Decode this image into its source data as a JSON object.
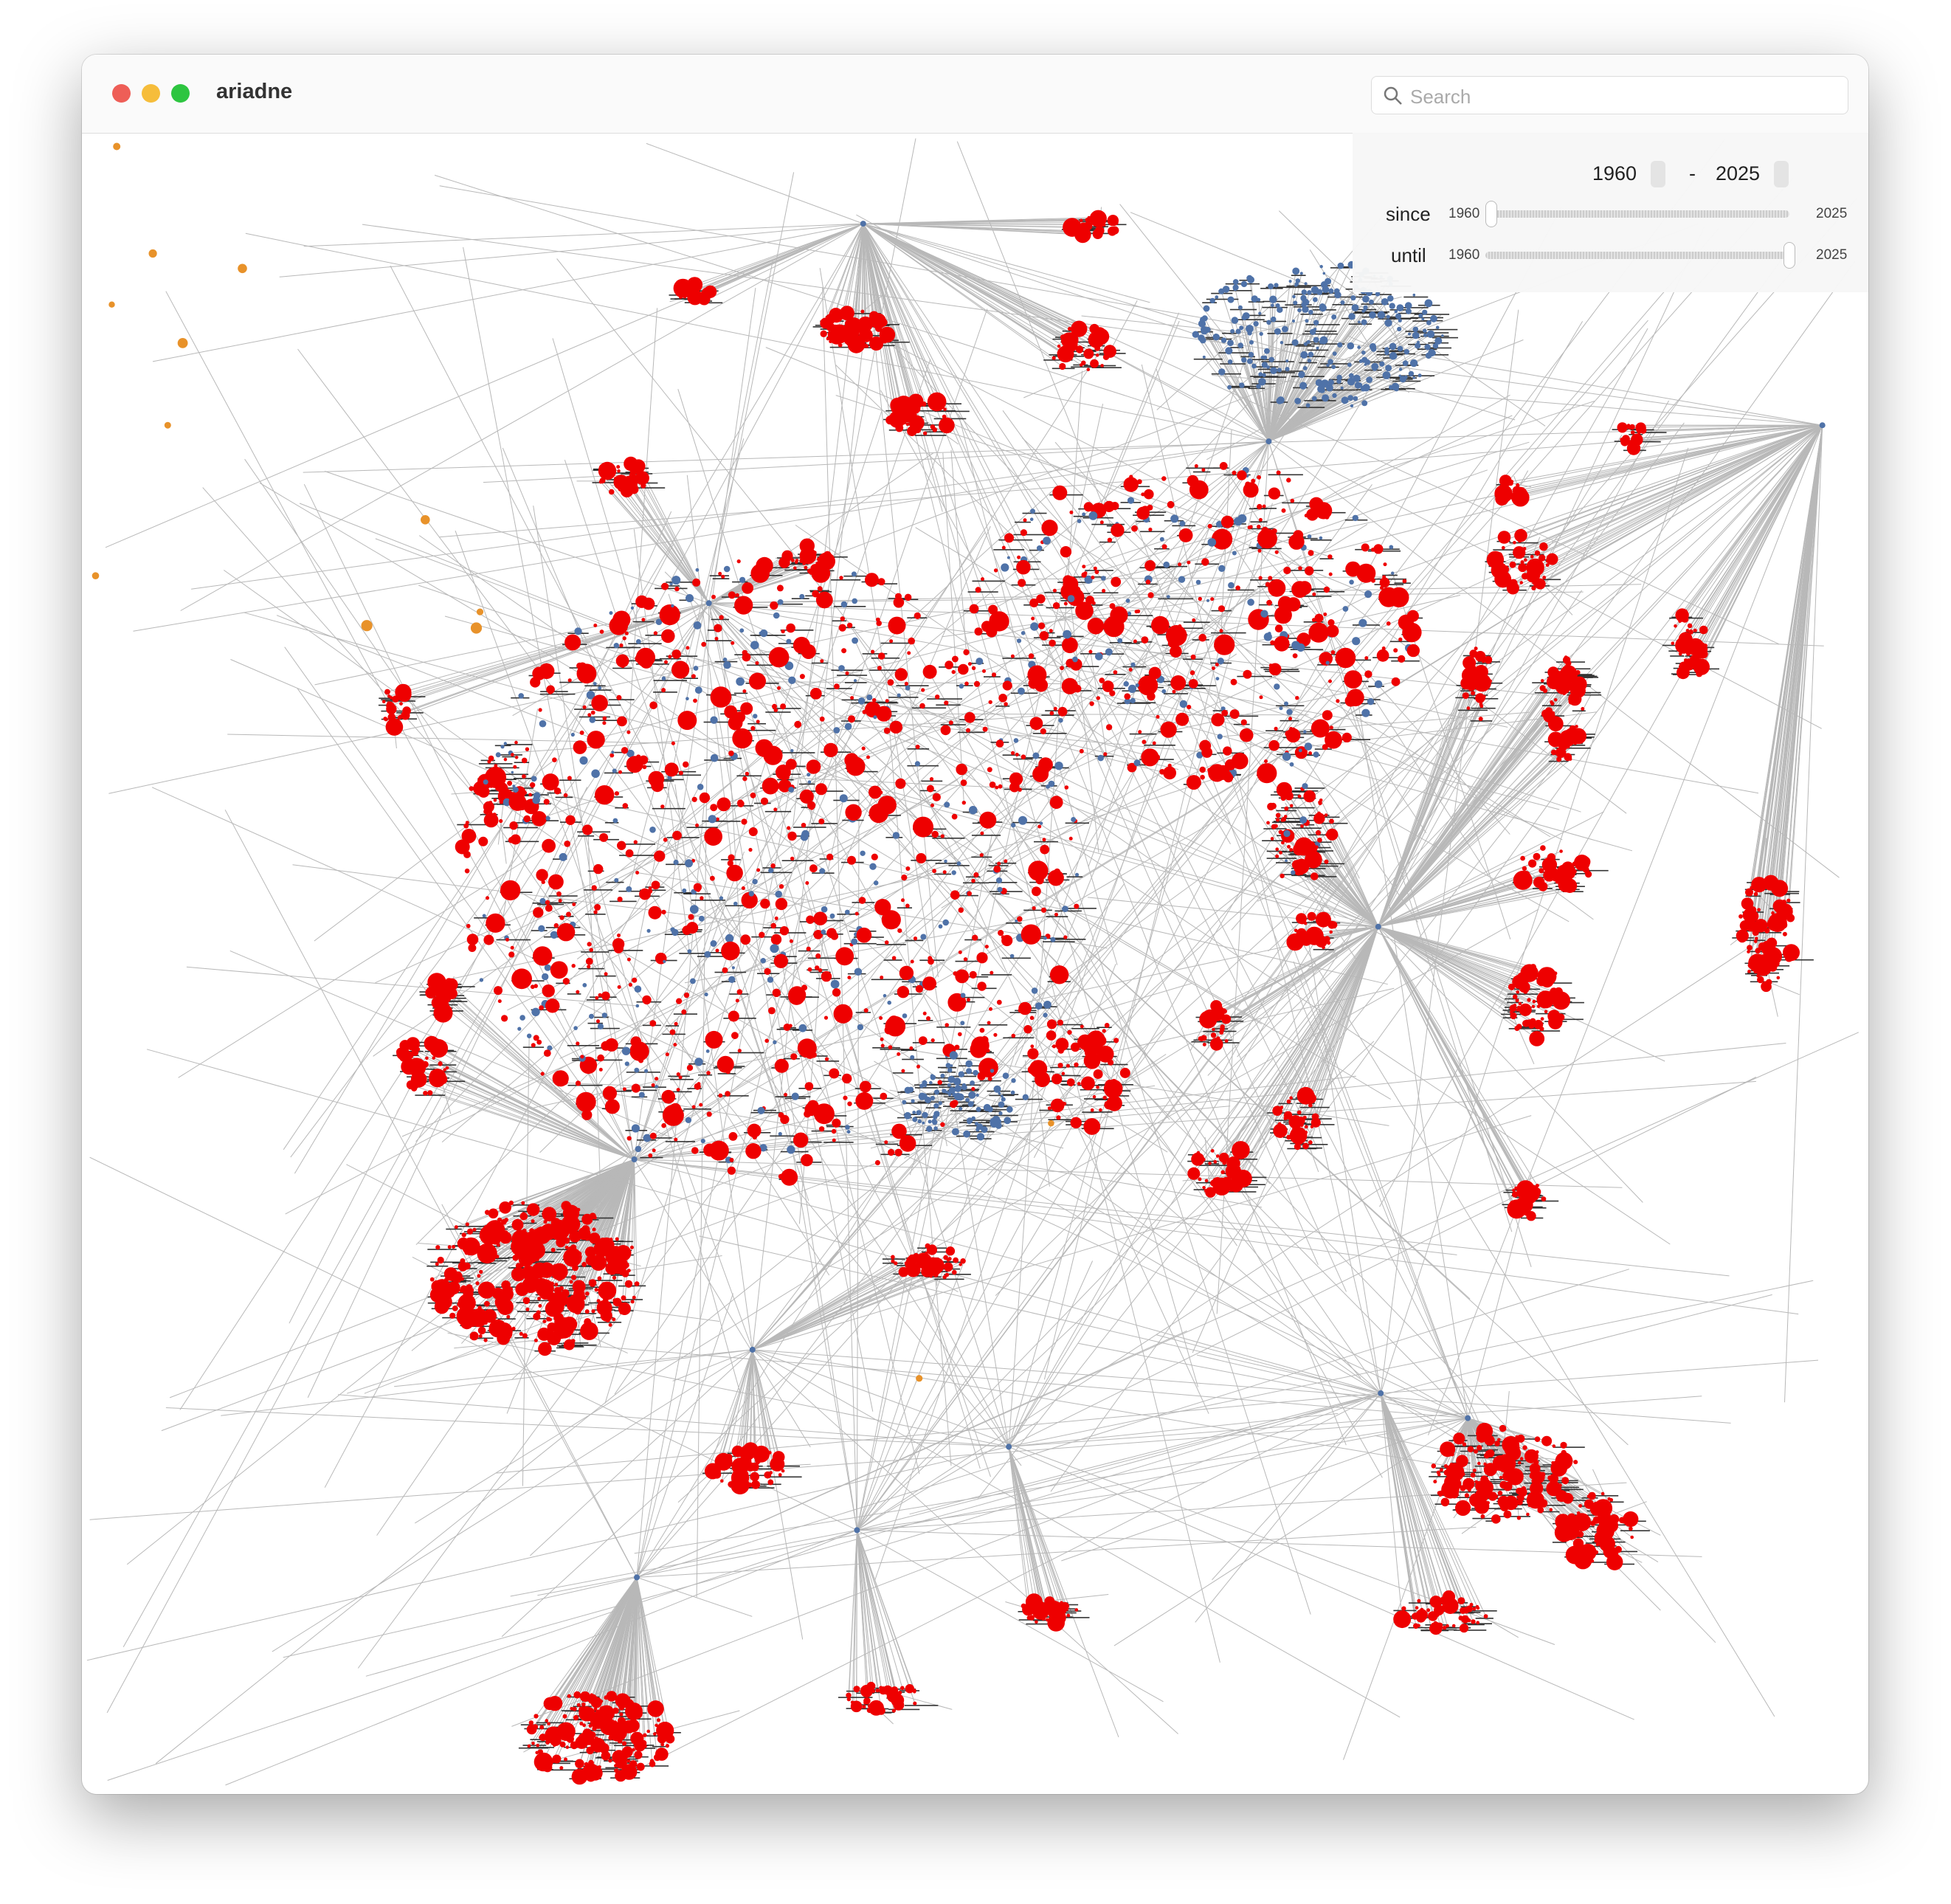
{
  "window": {
    "title": "ariadne"
  },
  "search": {
    "placeholder": "Search"
  },
  "range": {
    "from": 1960,
    "separator": "-",
    "to": 2025,
    "since": {
      "label": "since",
      "min": 1960,
      "max": 2025
    },
    "until": {
      "label": "until",
      "min": 1960,
      "max": 2025
    }
  }
}
